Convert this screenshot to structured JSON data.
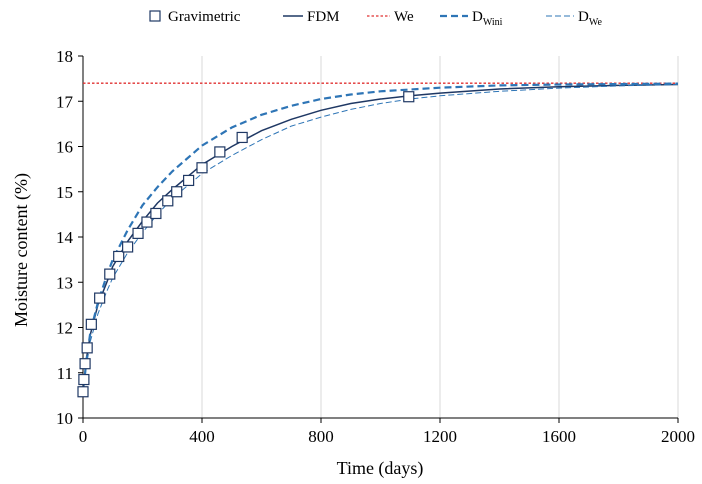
{
  "chart_data": {
    "type": "line",
    "xlabel": "Time (days)",
    "ylabel": "Moisture content (%)",
    "xlim": [
      0,
      2000
    ],
    "ylim": [
      10,
      18
    ],
    "xticks": [
      0,
      400,
      800,
      1200,
      1600,
      2000
    ],
    "yticks": [
      10,
      11,
      12,
      13,
      14,
      15,
      16,
      17,
      18
    ],
    "grid": "vertical-only",
    "legend_position": "top",
    "legend": [
      {
        "label": "Gravimetric",
        "sub": ""
      },
      {
        "label": "FDM",
        "sub": ""
      },
      {
        "label": "We",
        "sub": ""
      },
      {
        "label": "D",
        "sub": "Wini"
      },
      {
        "label": "D",
        "sub": "We"
      }
    ],
    "series": [
      {
        "name": "Gravimetric",
        "style": "markers",
        "color": "#1f3864",
        "points": [
          [
            0,
            10.58
          ],
          [
            3,
            10.85
          ],
          [
            7,
            11.2
          ],
          [
            14,
            11.55
          ],
          [
            28,
            12.07
          ],
          [
            56,
            12.65
          ],
          [
            90,
            13.18
          ],
          [
            120,
            13.57
          ],
          [
            150,
            13.78
          ],
          [
            185,
            14.08
          ],
          [
            215,
            14.33
          ],
          [
            245,
            14.52
          ],
          [
            285,
            14.8
          ],
          [
            315,
            15.0
          ],
          [
            355,
            15.25
          ],
          [
            400,
            15.53
          ],
          [
            460,
            15.88
          ],
          [
            535,
            16.2
          ],
          [
            1095,
            17.1
          ]
        ]
      },
      {
        "name": "FDM",
        "style": "solid",
        "color": "#1f3864",
        "points": [
          [
            0,
            10.5
          ],
          [
            10,
            11.25
          ],
          [
            25,
            11.85
          ],
          [
            50,
            12.5
          ],
          [
            80,
            13.0
          ],
          [
            100,
            13.35
          ],
          [
            150,
            13.9
          ],
          [
            200,
            14.35
          ],
          [
            250,
            14.75
          ],
          [
            300,
            15.05
          ],
          [
            400,
            15.6
          ],
          [
            500,
            16.0
          ],
          [
            600,
            16.35
          ],
          [
            700,
            16.6
          ],
          [
            800,
            16.8
          ],
          [
            900,
            16.95
          ],
          [
            1000,
            17.05
          ],
          [
            1100,
            17.12
          ],
          [
            1200,
            17.18
          ],
          [
            1400,
            17.27
          ],
          [
            1600,
            17.32
          ],
          [
            1800,
            17.35
          ],
          [
            2000,
            17.37
          ]
        ]
      },
      {
        "name": "We",
        "style": "dotted",
        "color": "#e03030",
        "points": [
          [
            0,
            17.4
          ],
          [
            2000,
            17.4
          ]
        ]
      },
      {
        "name": "DWini",
        "style": "dashed-thick",
        "color": "#2e75b6",
        "points": [
          [
            0,
            10.5
          ],
          [
            10,
            11.2
          ],
          [
            25,
            11.9
          ],
          [
            50,
            12.55
          ],
          [
            80,
            13.15
          ],
          [
            100,
            13.5
          ],
          [
            150,
            14.15
          ],
          [
            200,
            14.7
          ],
          [
            250,
            15.1
          ],
          [
            300,
            15.45
          ],
          [
            400,
            16.02
          ],
          [
            500,
            16.42
          ],
          [
            600,
            16.7
          ],
          [
            700,
            16.9
          ],
          [
            800,
            17.05
          ],
          [
            900,
            17.15
          ],
          [
            1000,
            17.22
          ],
          [
            1200,
            17.3
          ],
          [
            1400,
            17.35
          ],
          [
            1600,
            17.37
          ],
          [
            1800,
            17.38
          ],
          [
            2000,
            17.39
          ]
        ]
      },
      {
        "name": "DWe",
        "style": "dashed-thin",
        "color": "#2e75b6",
        "points": [
          [
            0,
            10.5
          ],
          [
            10,
            11.1
          ],
          [
            25,
            11.7
          ],
          [
            50,
            12.3
          ],
          [
            80,
            12.8
          ],
          [
            100,
            13.1
          ],
          [
            150,
            13.65
          ],
          [
            200,
            14.1
          ],
          [
            250,
            14.5
          ],
          [
            300,
            14.85
          ],
          [
            400,
            15.4
          ],
          [
            500,
            15.8
          ],
          [
            600,
            16.15
          ],
          [
            700,
            16.45
          ],
          [
            800,
            16.65
          ],
          [
            900,
            16.82
          ],
          [
            1000,
            16.95
          ],
          [
            1100,
            17.05
          ],
          [
            1200,
            17.12
          ],
          [
            1400,
            17.22
          ],
          [
            1600,
            17.29
          ],
          [
            1800,
            17.34
          ],
          [
            2000,
            17.37
          ]
        ]
      }
    ]
  }
}
